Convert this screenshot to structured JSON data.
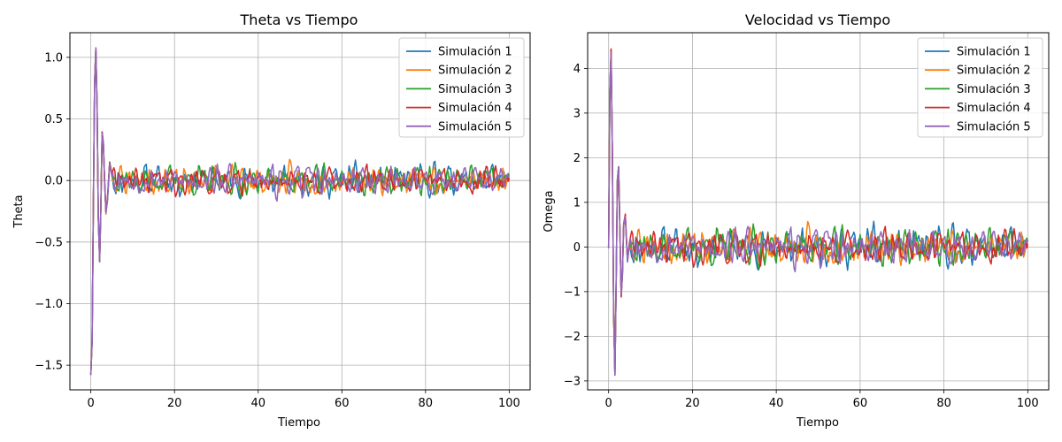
{
  "chart_data": [
    {
      "type": "line",
      "title": "Theta vs Tiempo",
      "xlabel": "Tiempo",
      "ylabel": "Theta",
      "xlim": [
        -5,
        105
      ],
      "ylim": [
        -1.7,
        1.2
      ],
      "xticks": [
        0,
        20,
        40,
        60,
        80,
        100
      ],
      "xtick_labels": [
        "0",
        "20",
        "40",
        "60",
        "80",
        "100"
      ],
      "yticks": [
        -1.5,
        -1.0,
        -0.5,
        0.0,
        0.5,
        1.0
      ],
      "ytick_labels": [
        "−1.5",
        "−1.0",
        "−0.5",
        "0.0",
        "0.5",
        "1.0"
      ],
      "grid": true,
      "legend_position": "top-right",
      "transient": {
        "x": [
          0,
          0.3,
          0.6,
          0.9,
          1.2,
          1.5,
          1.8,
          2.1,
          2.4,
          2.7,
          3.0,
          3.3,
          3.6,
          4.0,
          4.5,
          5.0
        ],
        "y": [
          -1.57,
          -1.3,
          -0.2,
          0.8,
          1.07,
          0.6,
          -0.3,
          -0.65,
          -0.2,
          0.38,
          0.3,
          0.0,
          -0.26,
          -0.15,
          0.15,
          0.05
        ]
      },
      "series": [
        {
          "name": "Simulación 1",
          "color": "#1f77b4",
          "noise_amplitude": 0.13,
          "seed": 11
        },
        {
          "name": "Simulación 2",
          "color": "#ff7f0e",
          "noise_amplitude": 0.12,
          "seed": 23
        },
        {
          "name": "Simulación 3",
          "color": "#2ca02c",
          "noise_amplitude": 0.12,
          "seed": 37
        },
        {
          "name": "Simulación 4",
          "color": "#d62728",
          "noise_amplitude": 0.11,
          "seed": 41
        },
        {
          "name": "Simulación 5",
          "color": "#9467bd",
          "noise_amplitude": 0.12,
          "seed": 53
        }
      ]
    },
    {
      "type": "line",
      "title": "Velocidad vs Tiempo",
      "xlabel": "Tiempo",
      "ylabel": "Omega",
      "xlim": [
        -5,
        105
      ],
      "ylim": [
        -3.2,
        4.8
      ],
      "xticks": [
        0,
        20,
        40,
        60,
        80,
        100
      ],
      "xtick_labels": [
        "0",
        "20",
        "40",
        "60",
        "80",
        "100"
      ],
      "yticks": [
        -3,
        -2,
        -1,
        0,
        1,
        2,
        3,
        4
      ],
      "ytick_labels": [
        "−3",
        "−2",
        "−1",
        "0",
        "1",
        "2",
        "3",
        "4"
      ],
      "grid": true,
      "legend_position": "top-right",
      "transient": {
        "x": [
          0,
          0.3,
          0.6,
          0.9,
          1.2,
          1.5,
          1.8,
          2.1,
          2.4,
          2.7,
          3.0,
          3.3,
          3.6,
          4.0,
          4.5,
          5.0
        ],
        "y": [
          0,
          3.5,
          4.4,
          2.2,
          -1.5,
          -2.85,
          -0.8,
          1.5,
          1.8,
          0.3,
          -1.1,
          -0.6,
          0.5,
          0.7,
          -0.3,
          0.1
        ]
      },
      "series": [
        {
          "name": "Simulación 1",
          "color": "#1f77b4",
          "noise_amplitude": 0.45,
          "seed": 11
        },
        {
          "name": "Simulación 2",
          "color": "#ff7f0e",
          "noise_amplitude": 0.4,
          "seed": 23
        },
        {
          "name": "Simulación 3",
          "color": "#2ca02c",
          "noise_amplitude": 0.42,
          "seed": 37
        },
        {
          "name": "Simulación 4",
          "color": "#d62728",
          "noise_amplitude": 0.38,
          "seed": 41
        },
        {
          "name": "Simulación 5",
          "color": "#9467bd",
          "noise_amplitude": 0.4,
          "seed": 53
        }
      ]
    }
  ]
}
